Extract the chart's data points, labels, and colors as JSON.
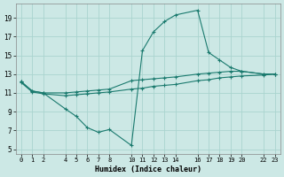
{
  "xlabel": "Humidex (Indice chaleur)",
  "bg_color": "#cce8e5",
  "line_color": "#1a7a6e",
  "grid_color": "#aad4cf",
  "xlim": [
    -0.5,
    23.5
  ],
  "ylim": [
    4.5,
    20.5
  ],
  "xticks": [
    0,
    1,
    2,
    4,
    5,
    6,
    7,
    8,
    10,
    11,
    12,
    13,
    14,
    16,
    17,
    18,
    19,
    20,
    22,
    23
  ],
  "yticks": [
    5,
    7,
    9,
    11,
    13,
    15,
    17,
    19
  ],
  "line1_x": [
    0,
    1,
    2,
    4,
    5,
    6,
    7,
    8,
    10,
    11,
    12,
    13,
    14,
    16,
    17,
    18,
    19,
    20,
    22,
    23
  ],
  "line1_y": [
    12.2,
    11.2,
    11.0,
    9.3,
    8.5,
    7.3,
    6.8,
    7.1,
    5.4,
    15.5,
    17.5,
    18.6,
    19.3,
    19.8,
    15.3,
    14.5,
    13.7,
    13.3,
    13.0,
    13.0
  ],
  "line2_x": [
    0,
    1,
    2,
    4,
    5,
    6,
    7,
    8,
    10,
    11,
    12,
    13,
    14,
    16,
    17,
    18,
    19,
    20,
    22,
    23
  ],
  "line2_y": [
    12.2,
    11.2,
    11.0,
    11.0,
    11.1,
    11.2,
    11.3,
    11.4,
    12.3,
    12.4,
    12.5,
    12.6,
    12.7,
    13.0,
    13.1,
    13.2,
    13.3,
    13.3,
    13.0,
    13.0
  ],
  "line3_x": [
    0,
    1,
    2,
    4,
    5,
    6,
    7,
    8,
    10,
    11,
    12,
    13,
    14,
    16,
    17,
    18,
    19,
    20,
    22,
    23
  ],
  "line3_y": [
    12.1,
    11.1,
    10.9,
    10.7,
    10.8,
    10.9,
    11.0,
    11.1,
    11.4,
    11.5,
    11.7,
    11.8,
    11.9,
    12.3,
    12.4,
    12.6,
    12.7,
    12.8,
    12.9,
    13.0
  ]
}
